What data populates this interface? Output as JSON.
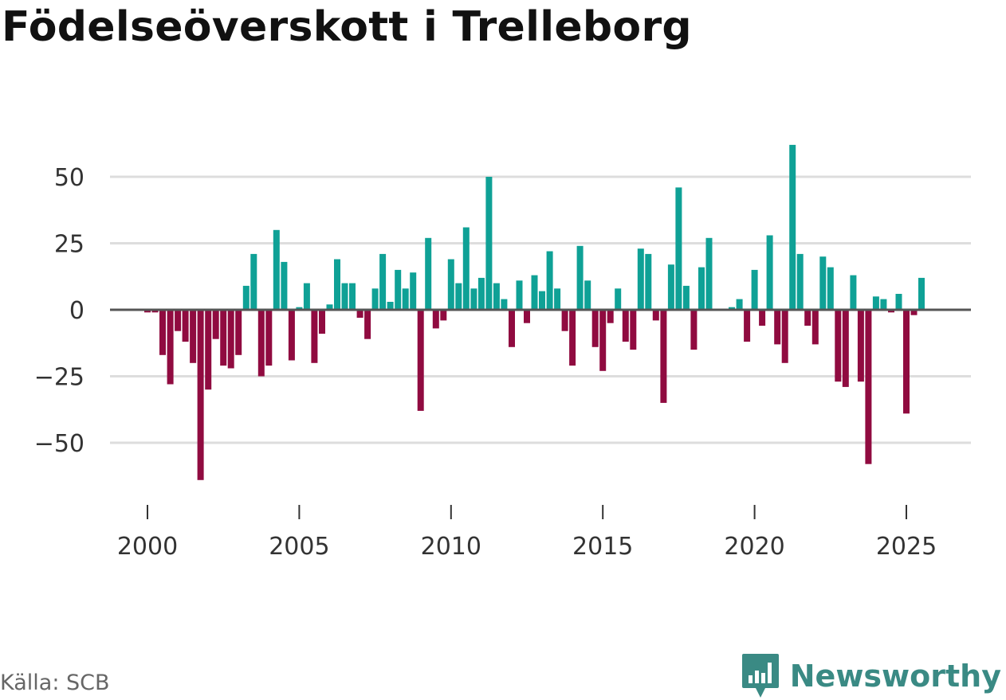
{
  "title": "Födelseöverskott i Trelleborg",
  "source": "Källa: SCB",
  "brand": {
    "name": "Newsworthy",
    "icon": "newsworthy-logo-icon"
  },
  "colors": {
    "positive": "#0fa196",
    "negative": "#900b40",
    "grid": "#dddddd",
    "zero_line": "#555555",
    "brand": "#3a8a84"
  },
  "chart_data": {
    "type": "bar",
    "title": "Födelseöverskott i Trelleborg",
    "xlabel": "",
    "ylabel": "",
    "x_unit": "year (monthly bars)",
    "xlim": [
      1999.25,
      2027.3
    ],
    "ylim": [
      -72,
      75
    ],
    "yticks": [
      50,
      25,
      0,
      -25,
      -50
    ],
    "ytick_labels": [
      "50",
      "25",
      "0",
      "−25",
      "−50"
    ],
    "xticks": [
      2000,
      2005,
      2010,
      2015,
      2020,
      2025
    ],
    "xtick_labels": [
      "2000",
      "2005",
      "2010",
      "2015",
      "2020",
      "2025"
    ],
    "start": 2000.0,
    "step": 0.25,
    "values": [
      -1,
      -1,
      -17,
      -28,
      -8,
      -12,
      -20,
      -64,
      -30,
      -11,
      -21,
      -22,
      -17,
      9,
      21,
      -25,
      -21,
      30,
      18,
      -19,
      1,
      10,
      -20,
      -9,
      2,
      19,
      10,
      10,
      -3,
      -11,
      8,
      21,
      3,
      15,
      8,
      14,
      -38,
      27,
      -7,
      -4,
      19,
      10,
      31,
      8,
      12,
      50,
      10,
      4,
      -14,
      11,
      -5,
      13,
      7,
      22,
      8,
      -8,
      -21,
      24,
      11,
      -14,
      -23,
      -5,
      8,
      -12,
      -15,
      23,
      21,
      -4,
      -35,
      17,
      46,
      9,
      -15,
      16,
      27,
      0,
      0,
      1,
      4,
      -12,
      15,
      -6,
      28,
      -13,
      -20,
      62,
      21,
      -6,
      -13,
      20,
      16,
      -27,
      -29,
      13,
      -27,
      -58,
      5,
      4,
      -1,
      6,
      -39,
      -2,
      12
    ]
  }
}
